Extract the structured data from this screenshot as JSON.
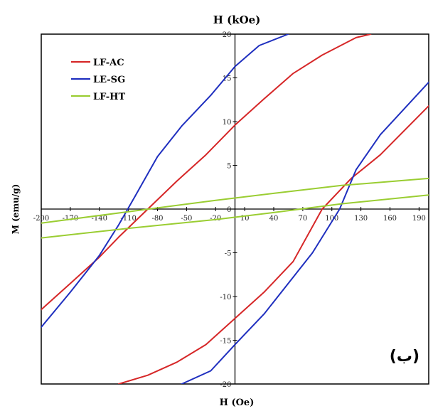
{
  "chart_data": {
    "type": "line",
    "title": "H (kOe)",
    "xlabel": "H (Oe)",
    "ylabel": "M (emu/g)",
    "panel_label": "(ب)",
    "xlim": [
      -200,
      200
    ],
    "ylim": [
      -20,
      20
    ],
    "x_ticks": [
      -200,
      -170,
      -140,
      -110,
      -80,
      -50,
      -20,
      10,
      40,
      70,
      100,
      130,
      160,
      190
    ],
    "y_ticks": [
      -20,
      -15,
      -10,
      -5,
      0,
      5,
      10,
      15,
      20
    ],
    "grid": false,
    "legend_position": "top-left",
    "series": [
      {
        "name": "LF-AC",
        "color": "#d62728",
        "branches": [
          [
            [
              -200,
              -11.5
            ],
            [
              -170,
              -8.5
            ],
            [
              -140,
              -5.5
            ],
            [
              -120,
              -3.2
            ],
            [
              -90,
              0
            ],
            [
              -60,
              3.2
            ],
            [
              -30,
              6.2
            ],
            [
              0,
              9.6
            ],
            [
              30,
              12.6
            ],
            [
              60,
              15.5
            ],
            [
              90,
              17.6
            ],
            [
              125,
              19.6
            ],
            [
              140,
              20
            ]
          ],
          [
            [
              -120,
              -20
            ],
            [
              -90,
              -19
            ],
            [
              -60,
              -17.5
            ],
            [
              -30,
              -15.5
            ],
            [
              0,
              -12.5
            ],
            [
              30,
              -9.5
            ],
            [
              60,
              -6
            ],
            [
              90,
              0
            ],
            [
              120,
              3.5
            ],
            [
              150,
              6.2
            ],
            [
              200,
              11.8
            ]
          ]
        ]
      },
      {
        "name": "LE-SG",
        "color": "#1f2fbf",
        "branches": [
          [
            [
              -200,
              -13.5
            ],
            [
              -170,
              -9.5
            ],
            [
              -140,
              -5.3
            ],
            [
              -120,
              -1.8
            ],
            [
              -103,
              1.5
            ],
            [
              -80,
              6
            ],
            [
              -55,
              9.5
            ],
            [
              -25,
              13
            ],
            [
              0,
              16.3
            ],
            [
              25,
              18.7
            ],
            [
              55,
              20
            ]
          ],
          [
            [
              -55,
              -20
            ],
            [
              -25,
              -18.5
            ],
            [
              0,
              -15.5
            ],
            [
              30,
              -12
            ],
            [
              55,
              -8.5
            ],
            [
              80,
              -5
            ],
            [
              108,
              0
            ],
            [
              125,
              4.5
            ],
            [
              150,
              8.5
            ],
            [
              200,
              14.5
            ]
          ]
        ]
      },
      {
        "name": "LF-HT",
        "color": "#9acd32",
        "branches": [
          [
            [
              -200,
              -1.6
            ],
            [
              -110,
              -0.3
            ],
            [
              -20,
              1.0
            ],
            [
              40,
              1.8
            ],
            [
              110,
              2.7
            ],
            [
              200,
              3.5
            ]
          ],
          [
            [
              -200,
              -3.3
            ],
            [
              -110,
              -2.2
            ],
            [
              -20,
              -1.2
            ],
            [
              40,
              -0.4
            ],
            [
              110,
              0.6
            ],
            [
              200,
              1.6
            ]
          ]
        ]
      }
    ]
  }
}
